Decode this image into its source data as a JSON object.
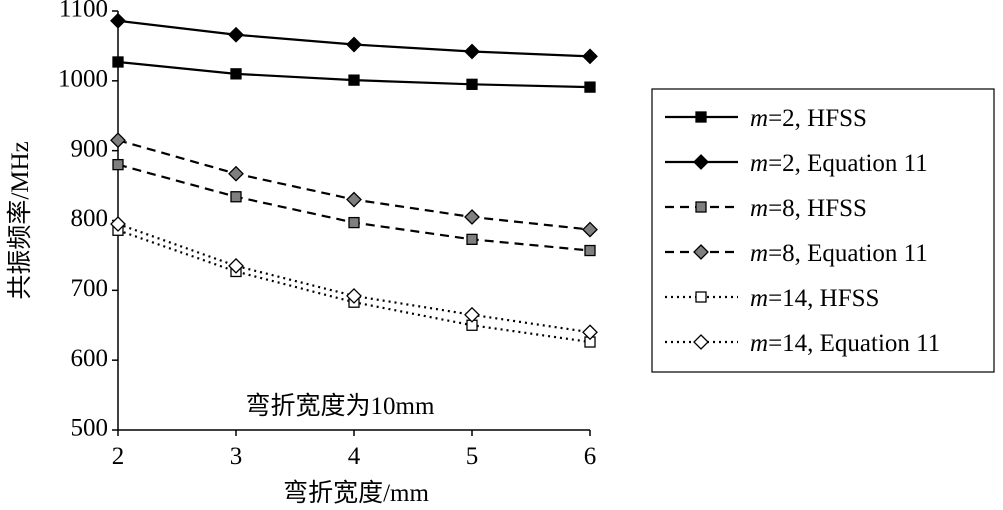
{
  "chart_data": {
    "type": "line",
    "title": "",
    "xlabel": "弯折宽度/mm",
    "ylabel": "共振频率/MHz",
    "annotation": "弯折宽度为10mm",
    "x": [
      2,
      3,
      4,
      5,
      6
    ],
    "xlim": [
      2,
      6
    ],
    "ylim": [
      500,
      1100
    ],
    "x_ticks": [
      "2",
      "3",
      "4",
      "5",
      "6"
    ],
    "y_ticks": [
      "500",
      "600",
      "700",
      "800",
      "900",
      "1000",
      "1100"
    ],
    "grid": false,
    "legend_position": "right",
    "series": [
      {
        "legend_var": "m",
        "legend_rest": "=2, HFSS",
        "line": "solid",
        "marker": "square",
        "marker_color": "#000000",
        "values": [
          1027,
          1010,
          1001,
          995,
          991
        ]
      },
      {
        "legend_var": "m",
        "legend_rest": "=2, Equation 11",
        "line": "solid",
        "marker": "diamond",
        "marker_color": "#000000",
        "values": [
          1086,
          1066,
          1052,
          1042,
          1035
        ]
      },
      {
        "legend_var": "m",
        "legend_rest": "=8, HFSS",
        "line": "dashed",
        "marker": "square",
        "marker_color": "#7f7f7f",
        "values": [
          880,
          834,
          797,
          773,
          757
        ]
      },
      {
        "legend_var": "m",
        "legend_rest": "=8, Equation 11",
        "line": "dashed",
        "marker": "diamond",
        "marker_color": "#7f7f7f",
        "values": [
          915,
          867,
          830,
          805,
          787
        ]
      },
      {
        "legend_var": "m",
        "legend_rest": "=14, HFSS",
        "line": "dotted",
        "marker": "square",
        "marker_color": "#ffffff",
        "values": [
          786,
          727,
          683,
          650,
          626
        ]
      },
      {
        "legend_var": "m",
        "legend_rest": "=14, Equation 11",
        "line": "dotted",
        "marker": "diamond",
        "marker_color": "#ffffff",
        "values": [
          795,
          735,
          692,
          665,
          640
        ]
      }
    ]
  }
}
